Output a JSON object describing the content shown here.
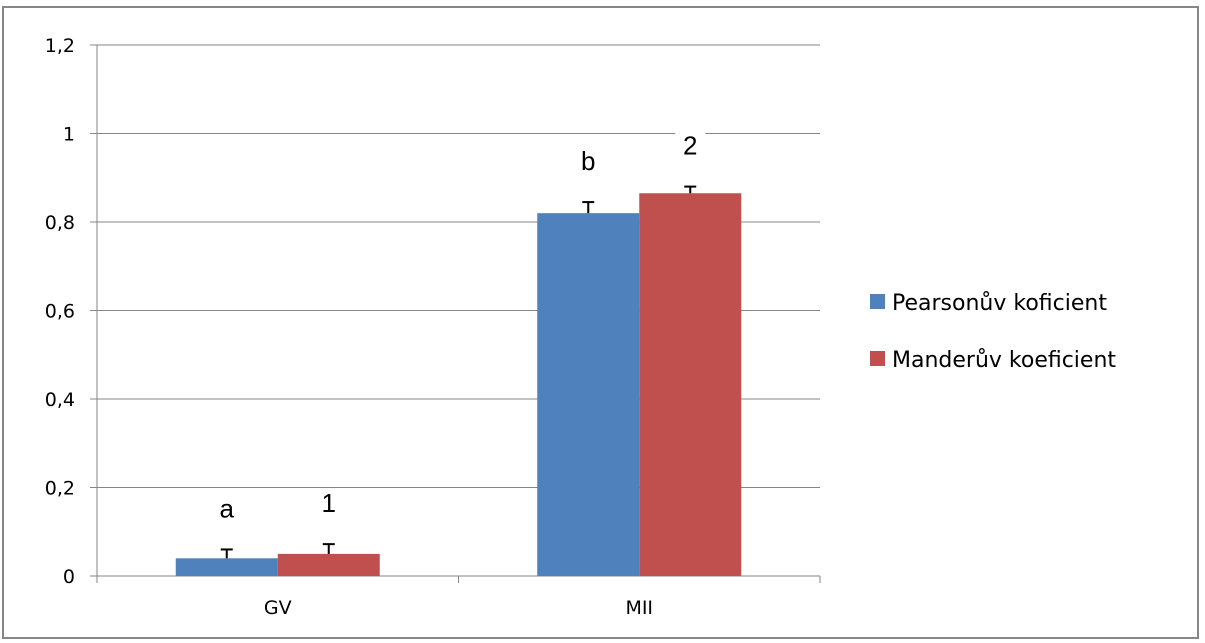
{
  "chart_data": {
    "type": "bar",
    "categories": [
      "GV",
      "MII"
    ],
    "series": [
      {
        "name": "Pearsonův koficient",
        "values": [
          0.04,
          0.82
        ],
        "errors": [
          0.02,
          0.025
        ],
        "color": "#4F81BD"
      },
      {
        "name": "Manderův koeficient",
        "values": [
          0.05,
          0.865
        ],
        "errors": [
          0.022,
          0.015
        ],
        "color": "#C0504D"
      }
    ],
    "annotations": [
      {
        "text": "a",
        "series": 0,
        "category": 0
      },
      {
        "text": "1",
        "series": 1,
        "category": 0
      },
      {
        "text": "b",
        "series": 0,
        "category": 1
      },
      {
        "text": "2",
        "series": 1,
        "category": 1
      }
    ],
    "ylim": [
      0,
      1.2
    ],
    "yticks": [
      0,
      0.2,
      0.4,
      0.6,
      0.8,
      1,
      1.2
    ],
    "ytick_labels": [
      "0",
      "0,2",
      "0,4",
      "0,6",
      "0,8",
      "1",
      "1,2"
    ],
    "grid": true,
    "legend_position": "right",
    "title": "",
    "xlabel": "",
    "ylabel": ""
  }
}
